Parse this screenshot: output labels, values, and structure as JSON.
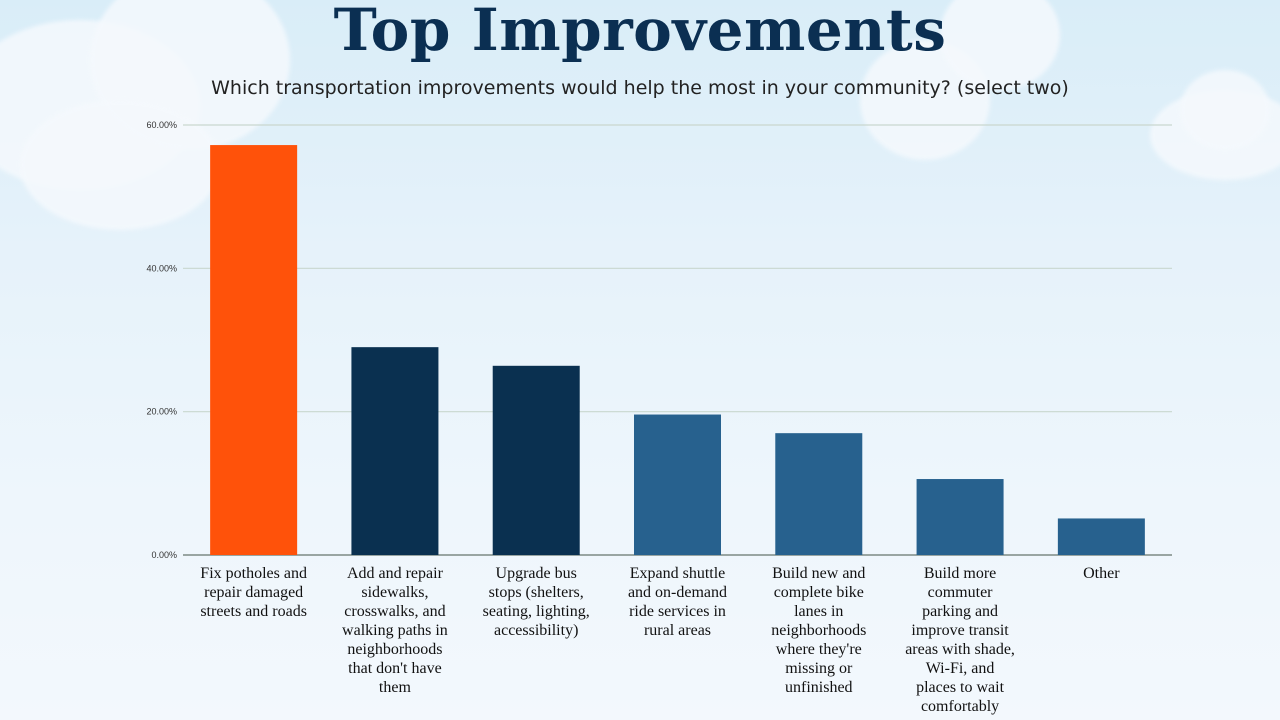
{
  "header": {
    "title": "Top Improvements",
    "subtitle": "Which transportation improvements would help the most in your community? (select two)"
  },
  "colors": {
    "highlight": "#ff520a",
    "dark": "#0a3050",
    "medium": "#27618e",
    "title": "#0b2f52",
    "grid": "#c9d7cf"
  },
  "chart_data": {
    "type": "bar",
    "title": "Top Improvements",
    "subtitle": "Which transportation improvements would help the most in your community? (select two)",
    "xlabel": "",
    "ylabel": "",
    "ylim": [
      0,
      60
    ],
    "yticks": [
      "0.00%",
      "20.00%",
      "40.00%",
      "60.00%"
    ],
    "grid": true,
    "categories": [
      "Fix potholes and repair damaged streets and roads",
      "Add and repair sidewalks, crosswalks, and walking paths in neighborhoods that don't have them",
      "Upgrade bus stops (shelters, seating, lighting, accessibility)",
      "Expand shuttle and on-demand ride services in rural areas",
      "Build new and complete bike lanes in neighborhoods where they're missing or unfinished",
      "Build more commuter parking and improve transit areas with shade, Wi-Fi, and places to wait comfortably",
      "Other"
    ],
    "category_lines": [
      [
        "Fix potholes and",
        "repair damaged",
        "streets and roads"
      ],
      [
        "Add and repair",
        "sidewalks,",
        "crosswalks, and",
        "walking paths in",
        "neighborhoods",
        "that don't have",
        "them"
      ],
      [
        "Upgrade bus",
        "stops (shelters,",
        "seating, lighting,",
        "accessibility)"
      ],
      [
        "Expand shuttle",
        "and on-demand",
        "ride services in",
        "rural areas"
      ],
      [
        "Build new and",
        "complete bike",
        "lanes in",
        "neighborhoods",
        "where they're",
        "missing or",
        "unfinished"
      ],
      [
        "Build more",
        "commuter",
        "parking and",
        "improve transit",
        "areas with shade,",
        "Wi-Fi, and",
        "places to wait",
        "comfortably"
      ],
      [
        "Other"
      ]
    ],
    "values": [
      57.2,
      29.0,
      26.4,
      19.6,
      17.0,
      10.6,
      5.1
    ],
    "bar_colors": [
      "#ff520a",
      "#0a3050",
      "#0a3050",
      "#27618e",
      "#27618e",
      "#27618e",
      "#27618e"
    ]
  }
}
